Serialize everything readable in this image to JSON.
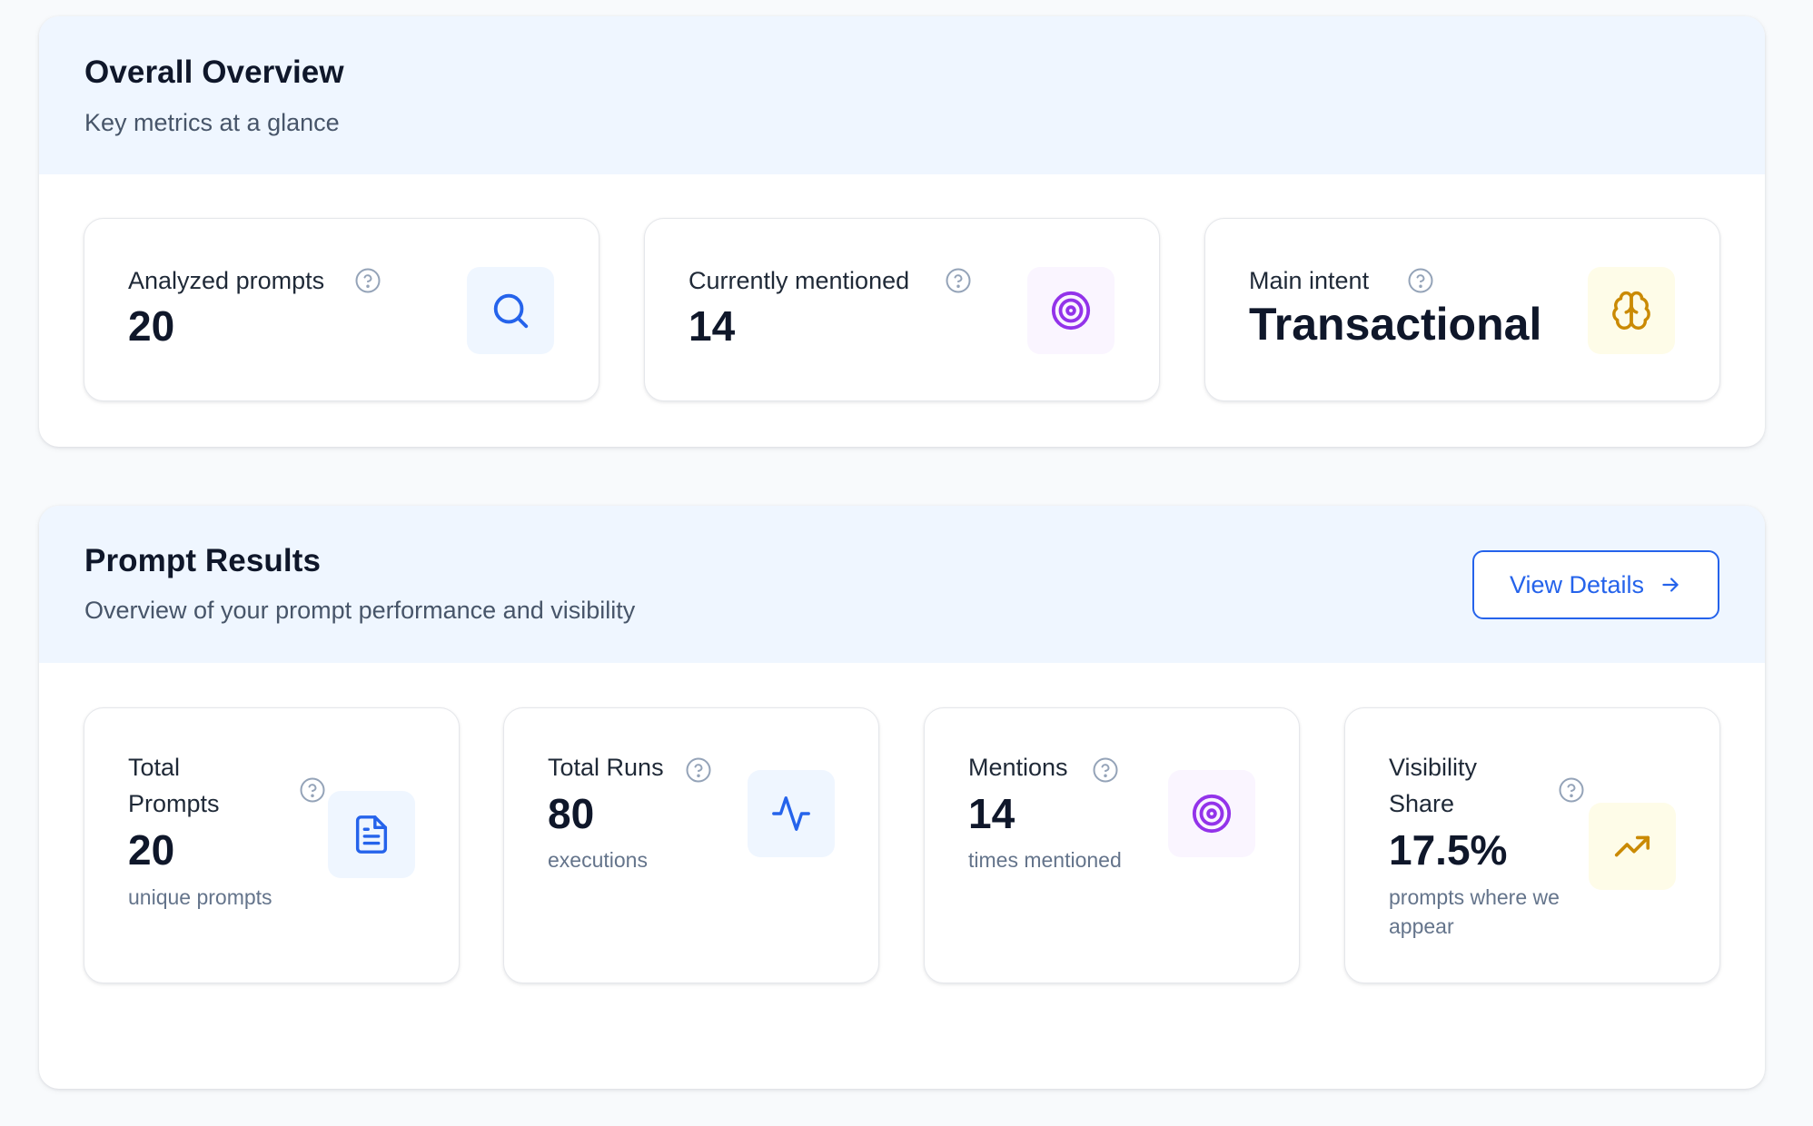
{
  "overview": {
    "title": "Overall Overview",
    "subtitle": "Key metrics at a glance",
    "cards": [
      {
        "label": "Analyzed prompts",
        "value": "20",
        "icon": "search-icon",
        "icon_color": "#2563eb"
      },
      {
        "label": "Currently mentioned",
        "value": "14",
        "icon": "target-icon",
        "icon_color": "#9333ea"
      },
      {
        "label": "Main intent",
        "value": "Transactional",
        "icon": "brain-icon",
        "icon_color": "#ca8a04"
      }
    ]
  },
  "results": {
    "title": "Prompt Results",
    "subtitle": "Overview of your prompt performance and visibility",
    "details_button": "View Details",
    "cards": [
      {
        "label_line1": "Total",
        "label_line2": "Prompts",
        "value": "20",
        "caption": "unique prompts",
        "icon": "document-icon",
        "icon_color": "#2563eb"
      },
      {
        "label": "Total Runs",
        "value": "80",
        "caption": "executions",
        "icon": "activity-icon",
        "icon_color": "#2563eb"
      },
      {
        "label": "Mentions",
        "value": "14",
        "caption": "times mentioned",
        "icon": "target-icon",
        "icon_color": "#9333ea"
      },
      {
        "label_line1": "Visibility",
        "label_line2": "Share",
        "value": "17.5%",
        "caption_line1": "prompts where we",
        "caption_line2": "appear",
        "icon": "trending-up-icon",
        "icon_color": "#ca8a04"
      }
    ]
  }
}
